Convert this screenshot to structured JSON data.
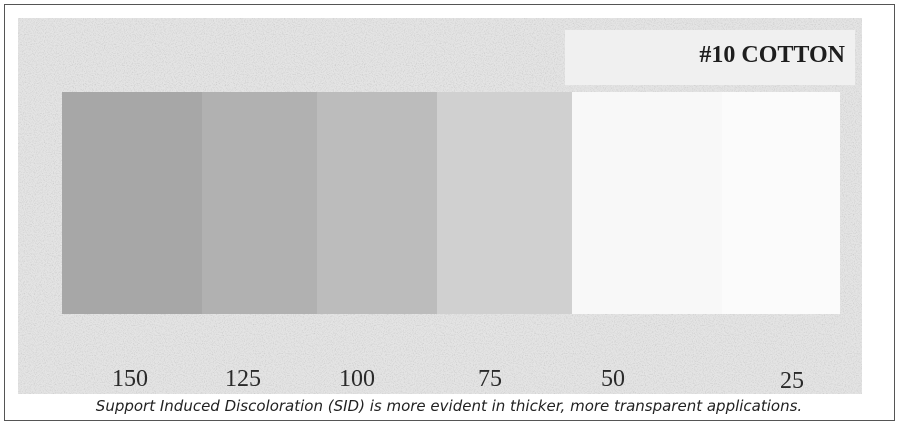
{
  "photo": {
    "label": "#10 COTTON",
    "swatches": [
      150,
      125,
      100,
      75,
      50,
      25
    ]
  },
  "caption": "Support Induced Discoloration (SID) is more evident in thicker, more transparent applications."
}
